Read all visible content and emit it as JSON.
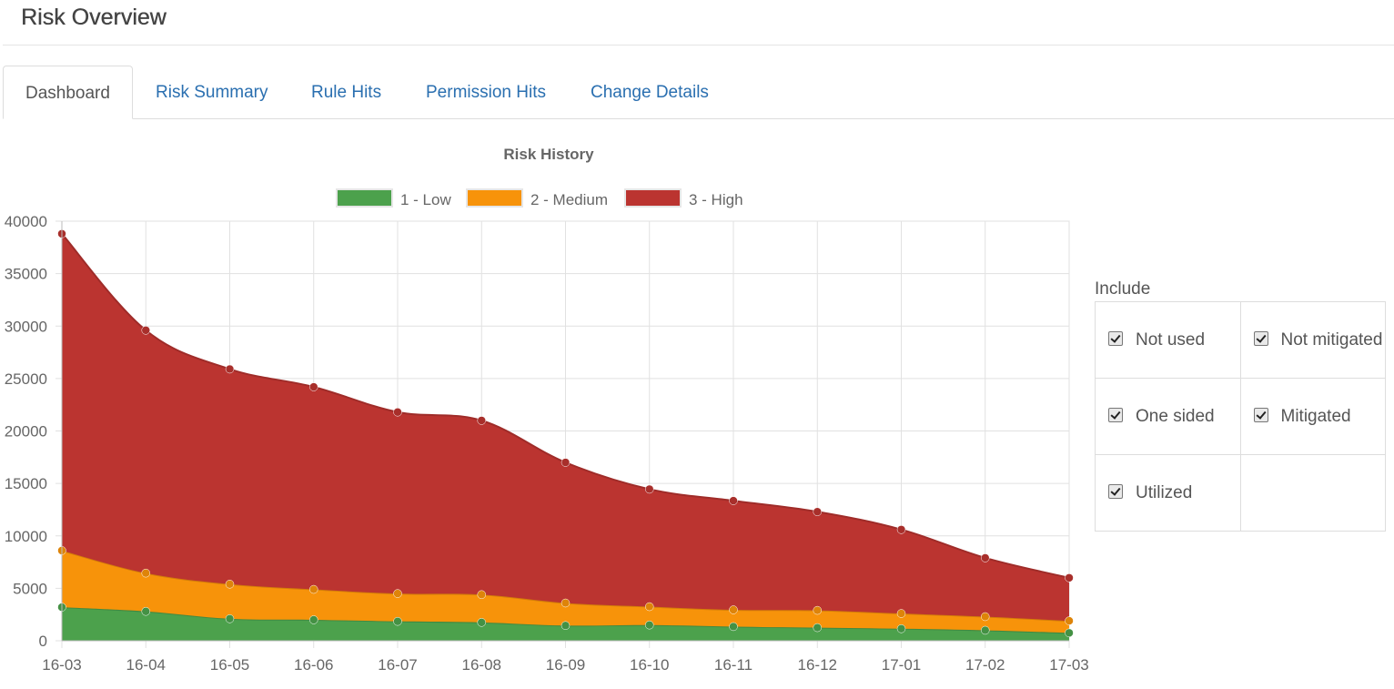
{
  "header": {
    "title": "Risk Overview"
  },
  "tabs": [
    {
      "label": "Dashboard",
      "active": true
    },
    {
      "label": "Risk Summary",
      "active": false
    },
    {
      "label": "Rule Hits",
      "active": false
    },
    {
      "label": "Permission Hits",
      "active": false
    },
    {
      "label": "Change Details",
      "active": false
    }
  ],
  "include": {
    "label": "Include",
    "options": [
      {
        "label": "Not used",
        "checked": true
      },
      {
        "label": "Not mitigated",
        "checked": true
      },
      {
        "label": "One sided",
        "checked": true
      },
      {
        "label": "Mitigated",
        "checked": true
      },
      {
        "label": "Utilized",
        "checked": true
      }
    ]
  },
  "chart_data": {
    "type": "area",
    "stacked": true,
    "title": "Risk History",
    "categories": [
      "16-03",
      "16-04",
      "16-05",
      "16-06",
      "16-07",
      "16-08",
      "16-09",
      "16-10",
      "16-11",
      "16-12",
      "17-01",
      "17-02",
      "17-03"
    ],
    "ylim": [
      0,
      40000
    ],
    "yticks": [
      0,
      5000,
      10000,
      15000,
      20000,
      25000,
      30000,
      35000,
      40000
    ],
    "grid": true,
    "legend_position": "top",
    "series": [
      {
        "name": "1 - Low",
        "color": "#4ca14c",
        "values": [
          3200,
          2800,
          2100,
          2000,
          1850,
          1750,
          1450,
          1500,
          1350,
          1250,
          1150,
          1000,
          750
        ]
      },
      {
        "name": "2 - Medium",
        "color": "#f7930a",
        "values": [
          5400,
          3650,
          3300,
          2900,
          2650,
          2650,
          2150,
          1750,
          1600,
          1650,
          1450,
          1300,
          1150
        ]
      },
      {
        "name": "3 - High",
        "color": "#bb3430",
        "values": [
          30200,
          23150,
          20500,
          19300,
          17300,
          16600,
          13400,
          11200,
          10400,
          9400,
          8000,
          5600,
          4100
        ]
      }
    ]
  }
}
